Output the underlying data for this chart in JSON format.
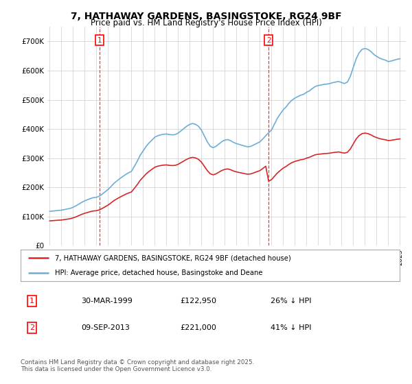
{
  "title_line1": "7, HATHAWAY GARDENS, BASINGSTOKE, RG24 9BF",
  "title_line2": "Price paid vs. HM Land Registry's House Price Index (HPI)",
  "ylim": [
    0,
    750000
  ],
  "yticks": [
    0,
    100000,
    200000,
    300000,
    400000,
    500000,
    600000,
    700000
  ],
  "ytick_labels": [
    "£0",
    "£100K",
    "£200K",
    "£300K",
    "£400K",
    "£500K",
    "£600K",
    "£700K"
  ],
  "hpi_color": "#6baed6",
  "price_color": "#d62728",
  "legend_price_label": "7, HATHAWAY GARDENS, BASINGSTOKE, RG24 9BF (detached house)",
  "legend_hpi_label": "HPI: Average price, detached house, Basingstoke and Deane",
  "table_row1": [
    "1",
    "30-MAR-1999",
    "£122,950",
    "26% ↓ HPI"
  ],
  "table_row2": [
    "2",
    "09-SEP-2013",
    "£221,000",
    "41% ↓ HPI"
  ],
  "footnote": "Contains HM Land Registry data © Crown copyright and database right 2025.\nThis data is licensed under the Open Government Licence v3.0.",
  "background_color": "#ffffff",
  "grid_color": "#cccccc",
  "sale1_year": 1999.25,
  "sale2_year": 2013.75,
  "sale1_price": 122950,
  "sale2_price": 221000
}
